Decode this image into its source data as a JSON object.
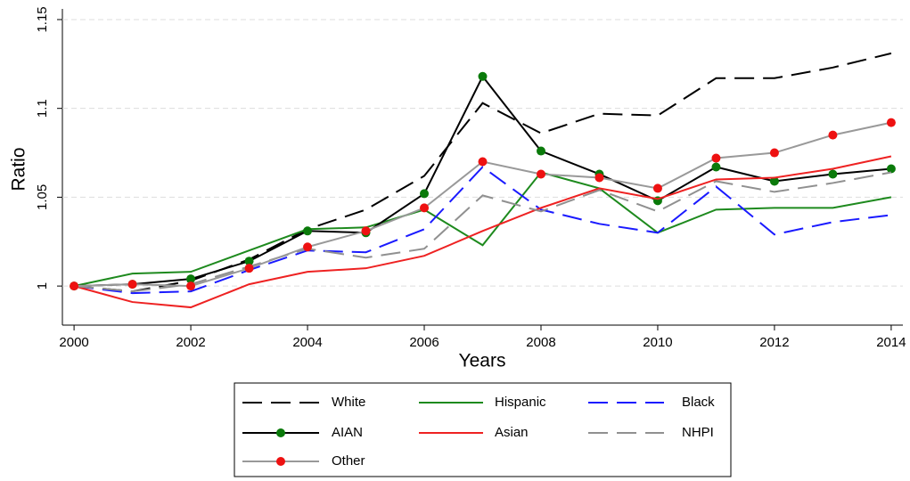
{
  "chart_data": {
    "type": "line",
    "x_label": "Years",
    "y_label": "Ratio",
    "x": [
      2000,
      2001,
      2002,
      2003,
      2004,
      2005,
      2006,
      2007,
      2008,
      2009,
      2010,
      2011,
      2012,
      2013,
      2014
    ],
    "xlim": [
      1999.8,
      2014.2
    ],
    "xticks": [
      2000,
      2002,
      2004,
      2006,
      2008,
      2010,
      2012,
      2014
    ],
    "ylim": [
      0.978,
      1.156
    ],
    "yticks": [
      1,
      1.05,
      1.1,
      1.15
    ],
    "grid": true,
    "series": [
      {
        "name": "White",
        "color": "#000000",
        "dash": true,
        "values": [
          1,
          0.997,
          1.003,
          1.015,
          1.032,
          1.043,
          1.062,
          1.103,
          1.086,
          1.097,
          1.096,
          1.117,
          1.117,
          1.123,
          1.131
        ]
      },
      {
        "name": "Hispanic",
        "color": "#1e8a1e",
        "dash": false,
        "values": [
          1,
          1.007,
          1.008,
          1.02,
          1.032,
          1.033,
          1.043,
          1.023,
          1.064,
          1.055,
          1.03,
          1.043,
          1.044,
          1.044,
          1.05
        ]
      },
      {
        "name": "Black",
        "color": "#1a1aff",
        "dash": true,
        "values": [
          1,
          0.996,
          0.997,
          1.009,
          1.02,
          1.019,
          1.032,
          1.067,
          1.043,
          1.035,
          1.03,
          1.056,
          1.029,
          1.036,
          1.04
        ]
      },
      {
        "name": "AIAN",
        "color": "#000000",
        "dash": false,
        "marker_color": "#0a7a0a",
        "values": [
          1,
          1.001,
          1.004,
          1.014,
          1.031,
          1.03,
          1.052,
          1.118,
          1.076,
          1.063,
          1.048,
          1.067,
          1.059,
          1.063,
          1.066
        ]
      },
      {
        "name": "Asian",
        "color": "#ee2222",
        "dash": false,
        "values": [
          1,
          0.991,
          0.988,
          1.001,
          1.008,
          1.01,
          1.017,
          1.031,
          1.044,
          1.055,
          1.049,
          1.06,
          1.061,
          1.066,
          1.073
        ]
      },
      {
        "name": "NHPI",
        "color": "#909090",
        "dash": true,
        "values": [
          1,
          0.997,
          1.001,
          1.011,
          1.021,
          1.016,
          1.021,
          1.051,
          1.042,
          1.054,
          1.042,
          1.059,
          1.053,
          1.058,
          1.064
        ]
      },
      {
        "name": "Other",
        "color": "#999999",
        "dash": false,
        "marker_color": "#ee1111",
        "values": [
          1,
          1.001,
          1.0,
          1.01,
          1.022,
          1.031,
          1.044,
          1.07,
          1.063,
          1.061,
          1.055,
          1.072,
          1.075,
          1.085,
          1.092
        ]
      }
    ]
  }
}
